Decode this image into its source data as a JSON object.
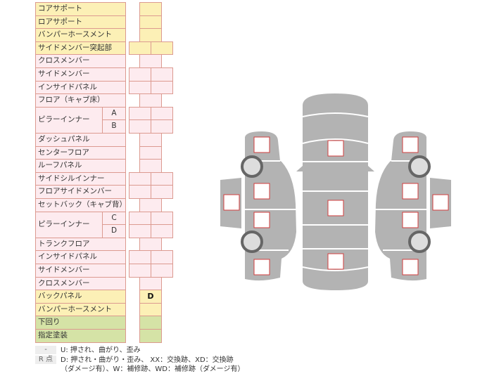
{
  "colors": {
    "yellow": "#fcf0b6",
    "pink": "#fdebef",
    "green": "#d5e3a6",
    "border": "#dc9a90",
    "car": "#b3b3b3",
    "marker": "#d23c3c"
  },
  "rows": [
    {
      "label": "コアサポート",
      "color": "yellow",
      "cols": 1,
      "values": [
        ""
      ]
    },
    {
      "label": "ロアサポート",
      "color": "yellow",
      "cols": 1,
      "values": [
        ""
      ]
    },
    {
      "label": "バンパーホースメント",
      "color": "yellow",
      "cols": 1,
      "values": [
        ""
      ]
    },
    {
      "label": "サイドメンバー突起部",
      "color": "yellow",
      "cols": 2,
      "values": [
        "",
        ""
      ]
    },
    {
      "label": "クロスメンバー",
      "color": "pink",
      "cols": 1,
      "values": [
        ""
      ]
    },
    {
      "label": "サイドメンバー",
      "color": "pink",
      "cols": 2,
      "values": [
        "",
        ""
      ]
    },
    {
      "label": "インサイドパネル",
      "color": "pink",
      "cols": 2,
      "values": [
        "",
        ""
      ]
    },
    {
      "label": "フロア（キャブ床）",
      "color": "pink",
      "cols": 1,
      "values": [
        ""
      ]
    },
    {
      "label": "ピラーインナー",
      "sub": "A",
      "group_start": true,
      "color": "pink",
      "cols": 2,
      "values": [
        "",
        ""
      ]
    },
    {
      "label": "",
      "sub": "B",
      "color": "pink",
      "cols": 2,
      "values": [
        "",
        ""
      ]
    },
    {
      "label": "ダッシュパネル",
      "color": "pink",
      "cols": 1,
      "values": [
        ""
      ]
    },
    {
      "label": "センターフロア",
      "color": "pink",
      "cols": 1,
      "values": [
        ""
      ]
    },
    {
      "label": "ルーフパネル",
      "color": "pink",
      "cols": 1,
      "values": [
        ""
      ]
    },
    {
      "label": "サイドシルインナー",
      "color": "pink",
      "cols": 2,
      "values": [
        "",
        ""
      ]
    },
    {
      "label": "フロアサイドメンバー",
      "color": "pink",
      "cols": 2,
      "values": [
        "",
        ""
      ]
    },
    {
      "label": "セットバック（キャブ背）",
      "color": "pink",
      "cols": 1,
      "values": [
        ""
      ]
    },
    {
      "label": "ピラーインナー",
      "sub": "C",
      "group_start": true,
      "color": "pink",
      "cols": 2,
      "values": [
        "",
        ""
      ]
    },
    {
      "label": "",
      "sub": "D",
      "color": "pink",
      "cols": 2,
      "values": [
        "",
        ""
      ]
    },
    {
      "label": "トランクフロア",
      "color": "pink",
      "cols": 1,
      "values": [
        ""
      ]
    },
    {
      "label": "インサイドパネル",
      "color": "pink",
      "cols": 2,
      "values": [
        "",
        ""
      ]
    },
    {
      "label": "サイドメンバー",
      "color": "pink",
      "cols": 2,
      "values": [
        "",
        ""
      ]
    },
    {
      "label": "クロスメンバー",
      "color": "pink",
      "cols": 1,
      "values": [
        ""
      ]
    },
    {
      "label": "バックパネル",
      "color": "yellow",
      "cols": 1,
      "values": [
        "D"
      ]
    },
    {
      "label": "バンパーホースメント",
      "color": "yellow",
      "cols": 1,
      "values": [
        ""
      ]
    },
    {
      "label": "下回り",
      "color": "green",
      "cols": 1,
      "values": [
        ""
      ]
    },
    {
      "label": "指定塗装",
      "color": "green",
      "cols": 1,
      "values": [
        ""
      ]
    }
  ],
  "legend": {
    "key1": "-",
    "text1": "U: 押され、曲がり、歪み",
    "key2": "R 点",
    "text2": "D: 押され・曲がり・歪み、 XX：交換跡、XD：交換跡",
    "text3": "（ダメージ有）、W：補修跡、WD：補修跡（ダメージ有）"
  }
}
